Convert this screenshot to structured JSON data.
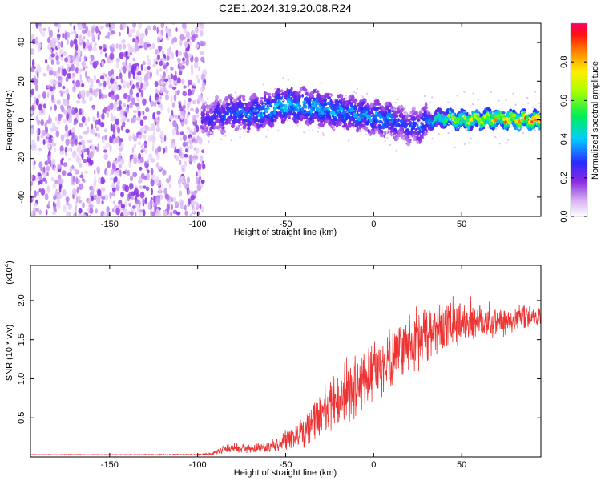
{
  "title": "C2E1.2024.319.20.08.R24",
  "chart_data": [
    {
      "type": "heatmap",
      "xlabel": "Height of straight line (km)",
      "ylabel": "Frequency (Hz)",
      "xlim": [
        -195,
        95
      ],
      "ylim": [
        -50,
        50
      ],
      "x_ticks": [
        -150,
        -100,
        -50,
        0,
        50
      ],
      "y_ticks": [
        -40,
        -20,
        0,
        20,
        40
      ],
      "colorbar": {
        "label": "Normalized spectral amplitude",
        "range": [
          0,
          1
        ],
        "ticks": [
          "0.0",
          "0.2",
          "0.4",
          "0.6",
          "0.8"
        ],
        "tick_values": [
          0,
          0.2,
          0.4,
          0.6,
          0.8
        ]
      },
      "noise_region_x": [
        -195,
        -100
      ],
      "signal_track": {
        "x": [
          -98,
          -90,
          -80,
          -70,
          -60,
          -50,
          -40,
          -30,
          -20,
          -10,
          0,
          10,
          15,
          20,
          25,
          30,
          40,
          50,
          60,
          70,
          80,
          90,
          95
        ],
        "freq": [
          -1,
          2,
          4,
          3,
          5,
          8,
          7,
          6,
          4,
          3,
          1,
          0,
          -2,
          -4,
          -3,
          -1,
          1,
          0,
          0,
          1,
          0,
          0,
          -1
        ],
        "amplitude": [
          0.25,
          0.3,
          0.35,
          0.38,
          0.42,
          0.45,
          0.45,
          0.42,
          0.4,
          0.38,
          0.4,
          0.38,
          0.3,
          0.3,
          0.35,
          0.4,
          0.6,
          0.75,
          0.8,
          0.85,
          0.85,
          0.9,
          0.9
        ]
      }
    },
    {
      "type": "line",
      "xlabel": "Height of straight line (km)",
      "ylabel": "SNR (10 * v/v)",
      "y_multiplier": "(x10",
      "y_multiplier_exp": "4",
      "y_multiplier_close": ")",
      "xlim": [
        -195,
        95
      ],
      "ylim": [
        0,
        2.45
      ],
      "x_ticks": [
        -150,
        -100,
        -50,
        0,
        50
      ],
      "y_ticks": [
        0.5,
        1.0,
        1.5,
        2.0
      ],
      "y_tick_labels": [
        "0.5",
        "1.0",
        "1.5",
        "2.0"
      ],
      "color": "#ee3333",
      "series": [
        {
          "x": [
            -195,
            -150,
            -100,
            -92,
            -85,
            -80,
            -70,
            -60,
            -50,
            -45,
            -40,
            -35,
            -30,
            -25,
            -20,
            -15,
            -10,
            -5,
            0,
            5,
            10,
            15,
            20,
            25,
            30,
            35,
            40,
            45,
            50,
            55,
            60,
            65,
            70,
            75,
            80,
            85,
            90,
            95
          ],
          "y": [
            0.03,
            0.03,
            0.03,
            0.04,
            0.1,
            0.12,
            0.1,
            0.12,
            0.2,
            0.25,
            0.3,
            0.45,
            0.55,
            0.65,
            0.75,
            0.85,
            0.9,
            1.0,
            1.05,
            1.15,
            1.3,
            1.4,
            1.45,
            1.5,
            1.55,
            1.6,
            1.65,
            1.7,
            1.7,
            1.75,
            1.75,
            1.75,
            1.72,
            1.75,
            1.75,
            1.78,
            1.8,
            1.8
          ],
          "noise": [
            0.005,
            0.005,
            0.01,
            0.02,
            0.06,
            0.07,
            0.07,
            0.08,
            0.15,
            0.2,
            0.25,
            0.3,
            0.35,
            0.4,
            0.4,
            0.5,
            0.55,
            0.45,
            0.45,
            0.45,
            0.45,
            0.45,
            0.5,
            0.5,
            0.45,
            0.45,
            0.4,
            0.4,
            0.35,
            0.35,
            0.3,
            0.3,
            0.25,
            0.25,
            0.2,
            0.2,
            0.15,
            0.15
          ]
        }
      ]
    }
  ]
}
